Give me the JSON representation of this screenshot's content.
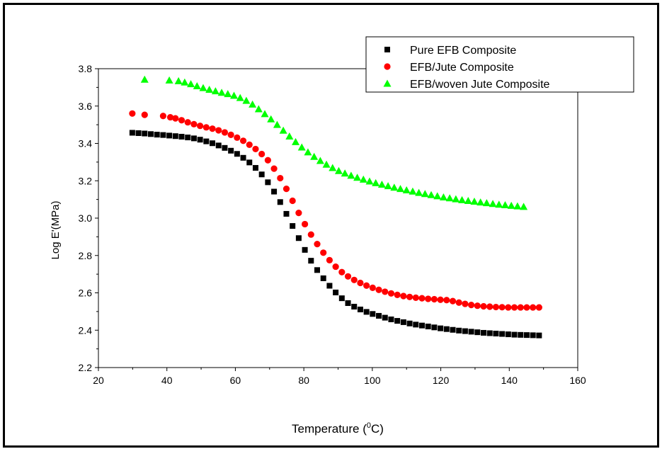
{
  "chart_data": {
    "type": "scatter",
    "xlabel": "Temperature (",
    "xlabel_sup": "0",
    "xlabel_end": "C)",
    "ylabel": "Log E'(MPa)",
    "xlim": [
      20,
      160
    ],
    "ylim": [
      2.2,
      3.8
    ],
    "x_ticks": [
      20,
      40,
      60,
      80,
      100,
      120,
      140,
      160
    ],
    "y_ticks": [
      2.2,
      2.4,
      2.6,
      2.8,
      3.0,
      3.2,
      3.4,
      3.6,
      3.8
    ],
    "y_tick_labels": [
      "2.2",
      "2.4",
      "2.6",
      "2.8",
      "3.0",
      "3.2",
      "3.4",
      "3.6",
      "3.8"
    ],
    "legend_position": "top-right",
    "series": [
      {
        "name": "Pure EFB Composite",
        "marker": "square",
        "color": "#000000",
        "x": [
          29.9,
          31.7,
          33.5,
          35.3,
          37.1,
          38.9,
          40.7,
          42.5,
          44.3,
          46.1,
          47.9,
          49.7,
          51.5,
          53.3,
          55.1,
          56.9,
          58.7,
          60.5,
          62.3,
          64.1,
          65.9,
          67.7,
          69.5,
          71.3,
          73.1,
          74.9,
          76.7,
          78.5,
          80.3,
          82.1,
          83.9,
          85.7,
          87.5,
          89.3,
          91.1,
          92.9,
          94.7,
          96.5,
          98.3,
          100.1,
          101.9,
          103.7,
          105.5,
          107.3,
          109.1,
          110.9,
          112.7,
          114.5,
          116.3,
          118.1,
          119.9,
          121.7,
          123.5,
          125.3,
          127.1,
          128.9,
          130.7,
          132.5,
          134.3,
          136.1,
          137.9,
          139.7,
          141.5,
          143.3,
          145.1,
          146.9,
          148.7
        ],
        "y": [
          3.457,
          3.455,
          3.453,
          3.45,
          3.447,
          3.445,
          3.442,
          3.439,
          3.436,
          3.432,
          3.427,
          3.42,
          3.411,
          3.401,
          3.389,
          3.376,
          3.361,
          3.344,
          3.323,
          3.298,
          3.269,
          3.234,
          3.192,
          3.142,
          3.086,
          3.023,
          2.958,
          2.893,
          2.83,
          2.772,
          2.722,
          2.678,
          2.638,
          2.602,
          2.571,
          2.545,
          2.526,
          2.511,
          2.498,
          2.487,
          2.477,
          2.467,
          2.458,
          2.45,
          2.443,
          2.436,
          2.43,
          2.425,
          2.42,
          2.415,
          2.41,
          2.406,
          2.402,
          2.398,
          2.395,
          2.392,
          2.389,
          2.386,
          2.384,
          2.382,
          2.38,
          2.378,
          2.376,
          2.375,
          2.374,
          2.373,
          2.372
        ]
      },
      {
        "name": "EFB/Jute Composite",
        "marker": "circle",
        "color": "#ff0000",
        "x": [
          29.9,
          33.5,
          38.9,
          41.0,
          42.5,
          44.3,
          46.1,
          47.9,
          49.7,
          51.5,
          53.3,
          55.1,
          56.9,
          58.7,
          60.5,
          62.3,
          64.1,
          65.9,
          67.7,
          69.5,
          71.3,
          73.1,
          74.9,
          76.7,
          78.5,
          80.3,
          82.1,
          83.9,
          85.7,
          87.5,
          89.3,
          91.1,
          92.9,
          94.7,
          96.5,
          98.3,
          100.1,
          101.9,
          103.7,
          105.5,
          107.3,
          109.1,
          110.9,
          112.7,
          114.5,
          116.3,
          118.1,
          119.9,
          121.7,
          123.5,
          125.3,
          127.1,
          128.9,
          130.7,
          132.5,
          134.3,
          136.1,
          137.9,
          139.7,
          141.5,
          143.3,
          145.1,
          146.9,
          148.7
        ],
        "y": [
          3.56,
          3.553,
          3.547,
          3.54,
          3.534,
          3.524,
          3.513,
          3.503,
          3.494,
          3.486,
          3.479,
          3.47,
          3.459,
          3.446,
          3.431,
          3.414,
          3.393,
          3.37,
          3.343,
          3.31,
          3.265,
          3.214,
          3.157,
          3.093,
          3.028,
          2.968,
          2.912,
          2.861,
          2.815,
          2.775,
          2.74,
          2.711,
          2.688,
          2.669,
          2.653,
          2.639,
          2.627,
          2.616,
          2.606,
          2.597,
          2.589,
          2.583,
          2.578,
          2.574,
          2.571,
          2.568,
          2.566,
          2.563,
          2.561,
          2.556,
          2.548,
          2.541,
          2.535,
          2.531,
          2.528,
          2.526,
          2.524,
          2.523,
          2.522,
          2.522,
          2.522,
          2.522,
          2.522,
          2.522
        ]
      },
      {
        "name": "EFB/woven Jute Composite",
        "marker": "triangle",
        "color": "#00ff00",
        "x": [
          33.5,
          40.7,
          43.4,
          45.2,
          47.0,
          48.8,
          50.6,
          52.4,
          54.2,
          56.0,
          57.8,
          59.6,
          61.4,
          63.2,
          65.0,
          66.8,
          68.6,
          70.4,
          72.2,
          74.0,
          75.8,
          77.6,
          79.4,
          81.2,
          83.0,
          84.8,
          86.6,
          88.4,
          90.2,
          92.0,
          93.8,
          95.6,
          97.4,
          99.2,
          101.0,
          102.8,
          104.6,
          106.4,
          108.2,
          110.0,
          111.8,
          113.6,
          115.4,
          117.2,
          119.0,
          120.8,
          122.6,
          124.4,
          126.2,
          128.0,
          129.8,
          131.6,
          133.4,
          135.2,
          137.0,
          138.8,
          140.6,
          142.4,
          144.2
        ],
        "y": [
          3.742,
          3.738,
          3.734,
          3.727,
          3.718,
          3.707,
          3.697,
          3.688,
          3.68,
          3.672,
          3.665,
          3.656,
          3.644,
          3.629,
          3.609,
          3.584,
          3.558,
          3.53,
          3.5,
          3.469,
          3.438,
          3.408,
          3.379,
          3.353,
          3.329,
          3.307,
          3.287,
          3.269,
          3.253,
          3.24,
          3.228,
          3.217,
          3.207,
          3.197,
          3.188,
          3.18,
          3.172,
          3.164,
          3.157,
          3.15,
          3.143,
          3.136,
          3.13,
          3.124,
          3.118,
          3.112,
          3.107,
          3.102,
          3.097,
          3.093,
          3.089,
          3.085,
          3.081,
          3.077,
          3.073,
          3.07,
          3.067,
          3.064,
          3.061
        ]
      }
    ]
  }
}
